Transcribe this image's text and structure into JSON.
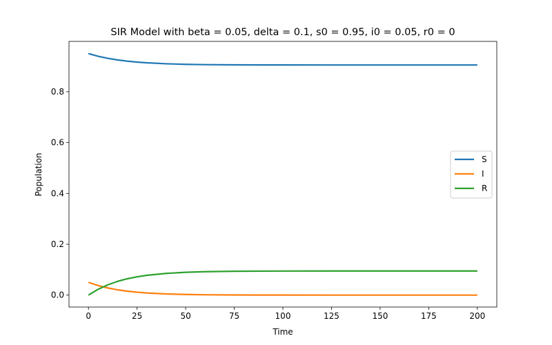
{
  "chart_data": {
    "type": "line",
    "title": "SIR Model with beta = 0.05, delta = 0.1, s0 = 0.95, i0 = 0.05, r0 = 0",
    "xlabel": "Time",
    "ylabel": "Population",
    "xlim": [
      -10,
      210
    ],
    "ylim": [
      -0.047,
      0.998
    ],
    "xticks": [
      0,
      25,
      50,
      75,
      100,
      125,
      150,
      175,
      200
    ],
    "yticks": [
      0.0,
      0.2,
      0.4,
      0.6,
      0.8
    ],
    "ytick_labels": [
      "0.0",
      "0.2",
      "0.4",
      "0.6",
      "0.8"
    ],
    "grid": false,
    "legend_position": "center-right",
    "x": [
      0,
      5,
      10,
      15,
      20,
      25,
      30,
      40,
      50,
      60,
      75,
      100,
      125,
      150,
      175,
      200
    ],
    "series": [
      {
        "name": "S",
        "color": "#1f77b4",
        "values": [
          0.95,
          0.9395,
          0.9314,
          0.9251,
          0.9203,
          0.9166,
          0.9138,
          0.91,
          0.9078,
          0.9065,
          0.9057,
          0.9053,
          0.9052,
          0.9052,
          0.9052,
          0.9052
        ]
      },
      {
        "name": "I",
        "color": "#ff7f0e",
        "values": [
          0.05,
          0.0375,
          0.028,
          0.0208,
          0.0154,
          0.0114,
          0.0084,
          0.0046,
          0.0025,
          0.0013,
          0.0005,
          0.0001,
          0.0,
          0.0,
          0.0,
          0.0
        ]
      },
      {
        "name": "R",
        "color": "#2ca02c",
        "values": [
          0.0,
          0.023,
          0.0406,
          0.0541,
          0.0643,
          0.072,
          0.0778,
          0.0854,
          0.0897,
          0.0922,
          0.0938,
          0.0946,
          0.0948,
          0.0948,
          0.0948,
          0.0948
        ]
      }
    ]
  }
}
